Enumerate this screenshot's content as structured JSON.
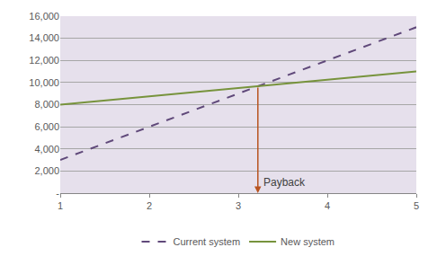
{
  "chart_data": {
    "type": "line",
    "x": [
      1,
      2,
      3,
      4,
      5
    ],
    "series": [
      {
        "name": "Current system",
        "color": "#60497a",
        "line_style": "dash",
        "values": [
          3000,
          6000,
          9000,
          12000,
          15000
        ]
      },
      {
        "name": "New system",
        "color": "#77933c",
        "line_style": "solid",
        "values": [
          8000,
          8750,
          9500,
          10250,
          11000
        ]
      }
    ],
    "xlim": [
      1,
      5
    ],
    "xticks": [
      1,
      2,
      3,
      4,
      5
    ],
    "ylim": [
      0,
      16000
    ],
    "yticks": [
      {
        "value": 0,
        "label": "-"
      },
      {
        "value": 2000,
        "label": "2,000"
      },
      {
        "value": 4000,
        "label": "4,000"
      },
      {
        "value": 6000,
        "label": "6,000"
      },
      {
        "value": 8000,
        "label": "8,000"
      },
      {
        "value": 10000,
        "label": "10,000"
      },
      {
        "value": 12000,
        "label": "12,000"
      },
      {
        "value": 14000,
        "label": "14,000"
      },
      {
        "value": 16000,
        "label": "16,000"
      }
    ],
    "grid": true,
    "legend": "bottom",
    "annotations": [
      {
        "text": "Payback",
        "x": 3.22,
        "y": 9667
      }
    ]
  }
}
